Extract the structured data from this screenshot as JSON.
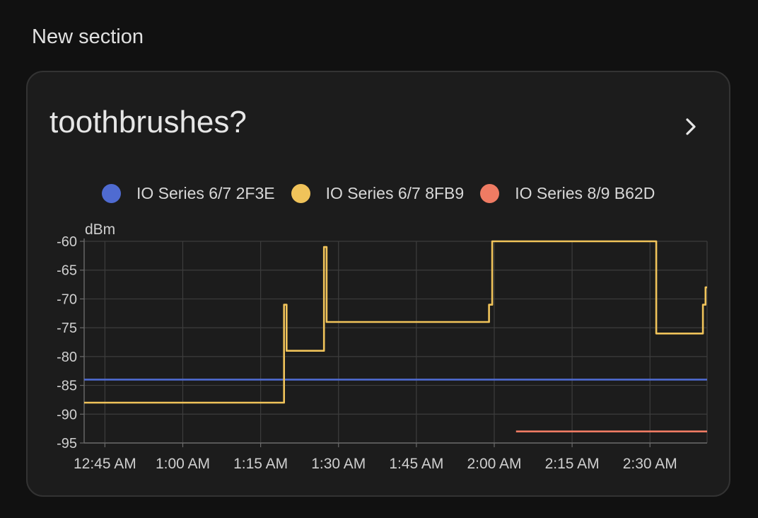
{
  "section": {
    "title": "New section"
  },
  "card": {
    "title": "toothbrushes?",
    "chevron_icon": "chevron-right-icon"
  },
  "legend": [
    {
      "label": "IO Series 6/7 2F3E",
      "color": "#4f6bd1"
    },
    {
      "label": "IO Series 6/7 8FB9",
      "color": "#f0c35a"
    },
    {
      "label": "IO Series 8/9 B62D",
      "color": "#ef7b63"
    }
  ],
  "chart_data": {
    "type": "line",
    "step": true,
    "ylabel": "dBm",
    "ylim": [
      -95,
      -60
    ],
    "yticks": [
      -60,
      -65,
      -70,
      -75,
      -80,
      -85,
      -90,
      -95
    ],
    "x_unit": "minutes",
    "xlim": [
      0,
      120
    ],
    "xticks": [
      {
        "t": 4,
        "label": "12:45 AM"
      },
      {
        "t": 19,
        "label": "1:00 AM"
      },
      {
        "t": 34,
        "label": "1:15 AM"
      },
      {
        "t": 49,
        "label": "1:30 AM"
      },
      {
        "t": 64,
        "label": "1:45 AM"
      },
      {
        "t": 79,
        "label": "2:00 AM"
      },
      {
        "t": 94,
        "label": "2:15 AM"
      },
      {
        "t": 109,
        "label": "2:30 AM"
      }
    ],
    "grid": true,
    "series": [
      {
        "name": "IO Series 6/7 2F3E",
        "color": "#4f6bd1",
        "points": [
          [
            0,
            -84
          ],
          [
            120,
            -84
          ]
        ]
      },
      {
        "name": "IO Series 6/7 8FB9",
        "color": "#f0c35a",
        "points": [
          [
            0,
            -88
          ],
          [
            38.5,
            -88
          ],
          [
            38.5,
            -71
          ],
          [
            39,
            -71
          ],
          [
            39,
            -79
          ],
          [
            46.2,
            -79
          ],
          [
            46.2,
            -61
          ],
          [
            46.7,
            -61
          ],
          [
            46.7,
            -74
          ],
          [
            78,
            -74
          ],
          [
            78,
            -71
          ],
          [
            78.6,
            -71
          ],
          [
            78.6,
            -60
          ],
          [
            110.2,
            -60
          ],
          [
            110.2,
            -76
          ],
          [
            119.2,
            -76
          ],
          [
            119.2,
            -71
          ],
          [
            119.7,
            -71
          ],
          [
            119.7,
            -68
          ],
          [
            120,
            -68
          ]
        ]
      },
      {
        "name": "IO Series 8/9 B62D",
        "color": "#ef7b63",
        "points": [
          [
            83.2,
            -93
          ],
          [
            120,
            -93
          ]
        ]
      }
    ]
  }
}
